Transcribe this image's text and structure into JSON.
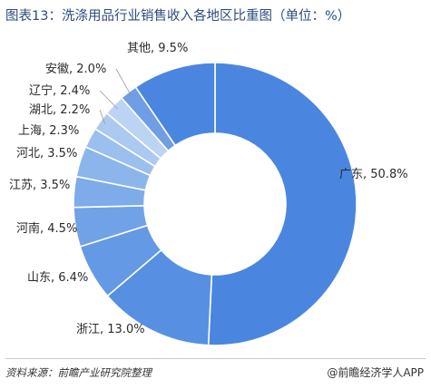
{
  "title": "图表13：洗涤用品行业销售收入各地区比重图（单位：%）",
  "source": "资料来源：前瞻产业研究院整理",
  "brand": "@前瞻经济学人APP",
  "chart_data": {
    "type": "pie",
    "variant": "donut",
    "title": "图表13：洗涤用品行业销售收入各地区比重图（单位：%）",
    "unit": "%",
    "start_angle_deg": 0,
    "direction": "clockwise",
    "slices": [
      {
        "label": "广东",
        "value": 50.8,
        "display": "广东, 50.8%",
        "color": "#4a86e0"
      },
      {
        "label": "浙江",
        "value": 13.0,
        "display": "浙江, 13.0%",
        "color": "#5790e2"
      },
      {
        "label": "山东",
        "value": 6.4,
        "display": "山东, 6.4%",
        "color": "#6399e5"
      },
      {
        "label": "河南",
        "value": 4.5,
        "display": "河南, 4.5%",
        "color": "#70a2e7"
      },
      {
        "label": "江苏",
        "value": 3.5,
        "display": "江苏, 3.5%",
        "color": "#7eabe9"
      },
      {
        "label": "河北",
        "value": 3.5,
        "display": "河北, 3.5%",
        "color": "#8cb5eb"
      },
      {
        "label": "上海",
        "value": 2.3,
        "display": "上海, 2.3%",
        "color": "#9bbfee"
      },
      {
        "label": "湖北",
        "value": 2.2,
        "display": "湖北, 2.2%",
        "color": "#abc9f1"
      },
      {
        "label": "辽宁",
        "value": 2.4,
        "display": "辽宁, 2.4%",
        "color": "#bcd4f4"
      },
      {
        "label": "安徽",
        "value": 2.0,
        "display": "安徽, 2.0%",
        "color": "#6f9de6"
      },
      {
        "label": "其他",
        "value": 9.5,
        "display": "其他, 9.5%",
        "color": "#4a86e0"
      }
    ]
  }
}
